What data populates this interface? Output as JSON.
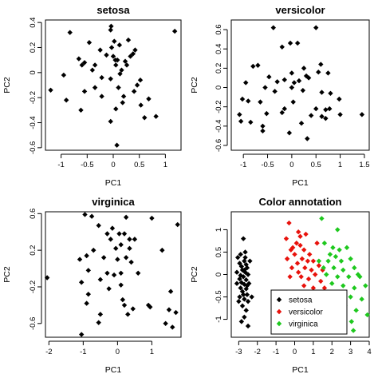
{
  "chart_data": [
    {
      "type": "scatter",
      "title": "setosa",
      "xlabel": "PC1",
      "ylabel": "PC2",
      "xlim": [
        -1.3,
        1.3
      ],
      "ylim": [
        -0.62,
        0.42
      ],
      "xticks": [
        -1.0,
        -0.5,
        0.0,
        0.5,
        1.0
      ],
      "yticks": [
        -0.6,
        -0.4,
        -0.2,
        0.0,
        0.2,
        0.4
      ],
      "color": "#000000",
      "points": [
        [
          -0.83,
          0.32
        ],
        [
          -0.05,
          0.34
        ],
        [
          -0.04,
          0.37
        ],
        [
          1.18,
          0.33
        ],
        [
          -0.46,
          0.24
        ],
        [
          0.29,
          0.26
        ],
        [
          0.02,
          0.25
        ],
        [
          -0.25,
          0.18
        ],
        [
          -0.03,
          0.2
        ],
        [
          0.12,
          0.22
        ],
        [
          0.38,
          0.15
        ],
        [
          0.42,
          0.18
        ],
        [
          0.26,
          0.06
        ],
        [
          0.33,
          0.13
        ],
        [
          -0.66,
          0.11
        ],
        [
          -0.55,
          0.08
        ],
        [
          -0.6,
          0.06
        ],
        [
          -0.35,
          0.06
        ],
        [
          -0.13,
          0.14
        ],
        [
          0.0,
          0.13
        ],
        [
          0.04,
          0.1
        ],
        [
          0.08,
          0.1
        ],
        [
          0.05,
          0.06
        ],
        [
          0.16,
          0.02
        ],
        [
          0.23,
          0.09
        ],
        [
          -0.4,
          0.02
        ],
        [
          -0.95,
          -0.02
        ],
        [
          -0.22,
          -0.04
        ],
        [
          -0.05,
          -0.05
        ],
        [
          0.13,
          -0.01
        ],
        [
          0.52,
          -0.06
        ],
        [
          0.46,
          -0.1
        ],
        [
          -0.35,
          -0.12
        ],
        [
          0.1,
          -0.12
        ],
        [
          -0.55,
          -0.15
        ],
        [
          -0.22,
          -0.19
        ],
        [
          0.2,
          -0.19
        ],
        [
          0.4,
          -0.15
        ],
        [
          -0.9,
          -0.22
        ],
        [
          0.68,
          -0.21
        ],
        [
          -1.2,
          -0.14
        ],
        [
          0.18,
          -0.24
        ],
        [
          0.53,
          -0.26
        ],
        [
          0.05,
          -0.29
        ],
        [
          -0.62,
          -0.3
        ],
        [
          0.6,
          -0.36
        ],
        [
          0.82,
          -0.35
        ],
        [
          -0.05,
          -0.39
        ],
        [
          0.07,
          -0.58
        ]
      ]
    },
    {
      "type": "scatter",
      "title": "versicolor",
      "xlabel": "PC1",
      "ylabel": "PC2",
      "xlim": [
        -1.25,
        1.6
      ],
      "ylim": [
        -0.65,
        0.7
      ],
      "xticks": [
        -1.0,
        -0.5,
        0.0,
        0.5,
        1.0,
        1.5
      ],
      "yticks": [
        -0.6,
        -0.4,
        -0.2,
        0.0,
        0.2,
        0.4,
        0.6
      ],
      "color": "#000000",
      "points": [
        [
          -0.38,
          0.62
        ],
        [
          -0.03,
          0.46
        ],
        [
          0.12,
          0.46
        ],
        [
          0.5,
          0.62
        ],
        [
          -0.2,
          0.42
        ],
        [
          -0.8,
          0.22
        ],
        [
          -0.7,
          0.23
        ],
        [
          0.25,
          0.2
        ],
        [
          0.0,
          0.15
        ],
        [
          0.6,
          0.24
        ],
        [
          -0.47,
          0.11
        ],
        [
          0.3,
          0.12
        ],
        [
          0.35,
          0.1
        ],
        [
          0.55,
          0.16
        ],
        [
          0.75,
          0.15
        ],
        [
          -0.3,
          0.06
        ],
        [
          -0.15,
          0.08
        ],
        [
          0.15,
          0.07
        ],
        [
          0.05,
          0.05
        ],
        [
          -0.95,
          0.05
        ],
        [
          -0.55,
          0.0
        ],
        [
          0.0,
          0.0
        ],
        [
          0.62,
          -0.05
        ],
        [
          -0.35,
          -0.04
        ],
        [
          0.23,
          -0.03
        ],
        [
          0.8,
          -0.06
        ],
        [
          -1.02,
          -0.12
        ],
        [
          -0.9,
          -0.14
        ],
        [
          -0.65,
          -0.15
        ],
        [
          0.03,
          -0.15
        ],
        [
          0.98,
          -0.12
        ],
        [
          -0.15,
          -0.22
        ],
        [
          0.5,
          -0.22
        ],
        [
          0.7,
          -0.23
        ],
        [
          -0.2,
          -0.26
        ],
        [
          -0.52,
          -0.27
        ],
        [
          -1.08,
          -0.28
        ],
        [
          1.0,
          -0.28
        ],
        [
          1.45,
          -0.28
        ],
        [
          0.4,
          -0.29
        ],
        [
          0.7,
          -0.32
        ],
        [
          -1.05,
          -0.35
        ],
        [
          -0.85,
          -0.36
        ],
        [
          0.2,
          -0.37
        ],
        [
          -0.6,
          -0.4
        ],
        [
          -0.6,
          -0.45
        ],
        [
          0.32,
          -0.53
        ],
        [
          -0.05,
          -0.47
        ],
        [
          0.78,
          -0.22
        ],
        [
          0.62,
          -0.3
        ]
      ]
    },
    {
      "type": "scatter",
      "title": "virginica",
      "xlabel": "PC1",
      "ylabel": "PC2",
      "xlim": [
        -2.1,
        1.85
      ],
      "ylim": [
        -0.75,
        0.62
      ],
      "xticks": [
        -2,
        -1,
        0,
        1
      ],
      "yticks": [
        -0.6,
        -0.2,
        0.2,
        0.6
      ],
      "color": "#000000",
      "points": [
        [
          -0.95,
          0.59
        ],
        [
          -0.75,
          0.57
        ],
        [
          0.25,
          0.56
        ],
        [
          1.0,
          0.55
        ],
        [
          -0.55,
          0.47
        ],
        [
          -0.15,
          0.44
        ],
        [
          -0.3,
          0.38
        ],
        [
          0.05,
          0.38
        ],
        [
          0.2,
          0.38
        ],
        [
          1.75,
          0.48
        ],
        [
          -0.2,
          0.32
        ],
        [
          0.35,
          0.32
        ],
        [
          0.5,
          0.32
        ],
        [
          0.1,
          0.26
        ],
        [
          -0.05,
          0.22
        ],
        [
          0.35,
          0.22
        ],
        [
          1.3,
          0.2
        ],
        [
          -0.7,
          0.2
        ],
        [
          -0.9,
          0.14
        ],
        [
          -1.1,
          0.1
        ],
        [
          -0.4,
          0.12
        ],
        [
          0.25,
          0.12
        ],
        [
          0.0,
          0.1
        ],
        [
          0.4,
          0.07
        ],
        [
          -0.85,
          -0.02
        ],
        [
          -0.3,
          -0.05
        ],
        [
          -0.1,
          -0.07
        ],
        [
          0.1,
          -0.05
        ],
        [
          0.6,
          -0.05
        ],
        [
          -2.05,
          -0.1
        ],
        [
          -0.5,
          -0.12
        ],
        [
          -1.05,
          -0.15
        ],
        [
          -0.25,
          -0.22
        ],
        [
          0.1,
          -0.18
        ],
        [
          -0.85,
          -0.28
        ],
        [
          0.15,
          -0.34
        ],
        [
          0.95,
          -0.42
        ],
        [
          0.2,
          -0.4
        ],
        [
          0.9,
          -0.4
        ],
        [
          -0.9,
          -0.38
        ],
        [
          0.45,
          -0.44
        ],
        [
          1.55,
          -0.25
        ],
        [
          1.5,
          -0.45
        ],
        [
          1.7,
          -0.48
        ],
        [
          -0.5,
          -0.5
        ],
        [
          0.3,
          -0.5
        ],
        [
          -0.55,
          -0.59
        ],
        [
          1.6,
          -0.64
        ],
        [
          -1.05,
          -0.72
        ],
        [
          1.4,
          -0.6
        ]
      ]
    },
    {
      "type": "scatter",
      "title": "Color annotation",
      "xlabel": "PC1",
      "ylabel": "PC2",
      "xlim": [
        -3.4,
        4.0
      ],
      "ylim": [
        -1.4,
        1.4
      ],
      "xticks": [
        -3,
        -2,
        -1,
        0,
        1,
        2,
        3,
        4
      ],
      "yticks": [
        -1.0,
        -0.5,
        0.0,
        0.5,
        1.0
      ],
      "legend": {
        "position": "bottom-right",
        "entries": [
          "setosa",
          "versicolor",
          "virginica"
        ]
      },
      "series": [
        {
          "name": "setosa",
          "color": "#000000",
          "points": [
            [
              -2.75,
              0.8
            ],
            [
              -2.9,
              0.45
            ],
            [
              -2.65,
              0.5
            ],
            [
              -3.05,
              0.38
            ],
            [
              -2.95,
              0.25
            ],
            [
              -2.7,
              0.3
            ],
            [
              -2.6,
              0.22
            ],
            [
              -2.85,
              0.18
            ],
            [
              -2.55,
              0.15
            ],
            [
              -3.1,
              0.05
            ],
            [
              -2.8,
              0.1
            ],
            [
              -2.65,
              0.05
            ],
            [
              -2.9,
              -0.02
            ],
            [
              -2.75,
              -0.05
            ],
            [
              -2.5,
              0.0
            ],
            [
              -2.95,
              -0.1
            ],
            [
              -2.6,
              -0.12
            ],
            [
              -2.85,
              -0.18
            ],
            [
              -2.45,
              -0.2
            ],
            [
              -2.7,
              -0.22
            ],
            [
              -2.9,
              -0.3
            ],
            [
              -2.6,
              -0.32
            ],
            [
              -2.8,
              -0.38
            ],
            [
              -2.55,
              -0.45
            ],
            [
              -2.95,
              -0.5
            ],
            [
              -2.7,
              -0.55
            ],
            [
              -2.5,
              -0.6
            ],
            [
              -2.8,
              -0.7
            ],
            [
              -2.6,
              -0.8
            ],
            [
              -2.7,
              -0.95
            ],
            [
              -2.85,
              -1.05
            ],
            [
              -2.5,
              -1.15
            ],
            [
              -3.1,
              -0.2
            ],
            [
              -2.4,
              0.3
            ],
            [
              -2.3,
              -0.5
            ],
            [
              -2.7,
              0.1
            ],
            [
              -2.55,
              -0.25
            ],
            [
              -2.75,
              -0.45
            ],
            [
              -3.0,
              -0.6
            ],
            [
              -2.65,
              0.38
            ]
          ]
        },
        {
          "name": "versicolor",
          "color": "#e8120c",
          "points": [
            [
              -0.3,
              1.15
            ],
            [
              -0.45,
              0.8
            ],
            [
              0.2,
              0.95
            ],
            [
              0.6,
              0.9
            ],
            [
              0.1,
              0.7
            ],
            [
              0.3,
              0.65
            ],
            [
              -0.2,
              0.55
            ],
            [
              0.5,
              0.55
            ],
            [
              0.0,
              0.45
            ],
            [
              0.8,
              0.45
            ],
            [
              1.2,
              0.7
            ],
            [
              -0.4,
              0.35
            ],
            [
              0.4,
              0.35
            ],
            [
              0.15,
              0.25
            ],
            [
              0.7,
              0.3
            ],
            [
              1.0,
              0.3
            ],
            [
              -0.15,
              0.15
            ],
            [
              0.55,
              0.15
            ],
            [
              0.9,
              0.1
            ],
            [
              1.3,
              0.2
            ],
            [
              0.2,
              0.05
            ],
            [
              1.1,
              0.0
            ],
            [
              0.35,
              -0.05
            ],
            [
              -0.25,
              -0.05
            ],
            [
              0.75,
              -0.1
            ],
            [
              1.4,
              -0.15
            ],
            [
              0.5,
              -0.25
            ],
            [
              1.0,
              -0.3
            ],
            [
              1.6,
              -0.3
            ],
            [
              0.9,
              -0.45
            ],
            [
              1.25,
              -0.5
            ],
            [
              1.05,
              -0.65
            ],
            [
              0.6,
              -0.6
            ],
            [
              -0.1,
              0.6
            ],
            [
              0.3,
              0.85
            ],
            [
              1.5,
              0.1
            ]
          ]
        },
        {
          "name": "virginica",
          "color": "#1ec81e",
          "points": [
            [
              1.45,
              1.25
            ],
            [
              2.3,
              1.0
            ],
            [
              1.6,
              0.7
            ],
            [
              2.05,
              0.6
            ],
            [
              2.4,
              0.55
            ],
            [
              2.8,
              0.6
            ],
            [
              1.9,
              0.45
            ],
            [
              2.2,
              0.4
            ],
            [
              1.3,
              0.3
            ],
            [
              1.8,
              0.3
            ],
            [
              2.5,
              0.3
            ],
            [
              3.0,
              0.35
            ],
            [
              1.55,
              0.15
            ],
            [
              2.1,
              0.15
            ],
            [
              2.6,
              0.1
            ],
            [
              3.2,
              0.15
            ],
            [
              1.7,
              0.0
            ],
            [
              2.3,
              -0.05
            ],
            [
              2.9,
              -0.05
            ],
            [
              3.5,
              -0.05
            ],
            [
              2.0,
              -0.2
            ],
            [
              2.6,
              -0.25
            ],
            [
              3.2,
              -0.3
            ],
            [
              3.8,
              -0.25
            ],
            [
              2.3,
              -0.45
            ],
            [
              3.0,
              -0.5
            ],
            [
              3.6,
              -0.55
            ],
            [
              2.7,
              -0.7
            ],
            [
              3.3,
              -0.8
            ],
            [
              3.9,
              -0.9
            ],
            [
              3.05,
              -1.05
            ],
            [
              3.15,
              -1.25
            ],
            [
              1.9,
              -0.55
            ],
            [
              2.5,
              -0.6
            ],
            [
              3.4,
              0.0
            ]
          ]
        }
      ]
    }
  ]
}
